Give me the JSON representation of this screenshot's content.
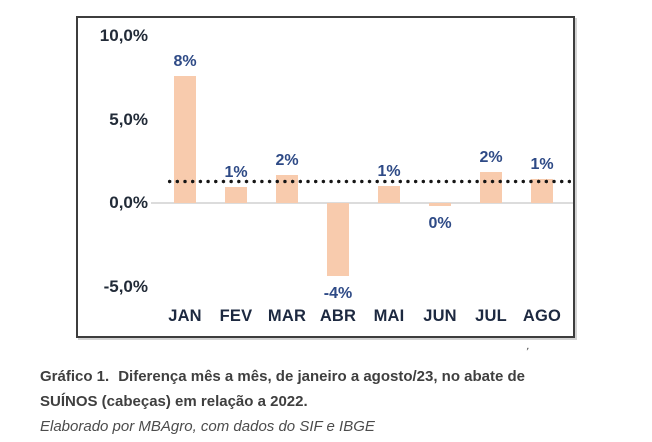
{
  "figure": {
    "caption_label": "Gráfico 1.",
    "caption_line1": "Diferença mês a mês, de janeiro a agosto/23, no abate de",
    "caption_line2": "SUÍNOS (cabeças) em relação a 2022.",
    "source_text": "Elaborado por MBAgro, com dados do SIF e IBGE",
    "stray_mark": ","
  },
  "chart_data": {
    "type": "bar",
    "title": "Diferença mês a mês, de janeiro a agosto/23, no abate de SUÍNOS (cabeças) em relação a 2022",
    "categories": [
      "JAN",
      "FEV",
      "MAR",
      "ABR",
      "MAI",
      "JUN",
      "JUL",
      "AGO"
    ],
    "values": [
      8,
      1,
      2,
      -4,
      1,
      0,
      2,
      1
    ],
    "bar_labels": [
      "8%",
      "1%",
      "2%",
      "-4%",
      "1%",
      "0%",
      "2%",
      "1%"
    ],
    "display_values": [
      7.6,
      0.95,
      1.7,
      -4.4,
      1.0,
      -0.15,
      1.85,
      1.45
    ],
    "xlabel": "",
    "ylabel": "",
    "ylim": [
      -6.5,
      11.2
    ],
    "grid": false,
    "legend": null,
    "y_axis": {
      "ticks": [
        {
          "label": "10,0%",
          "value": 10
        },
        {
          "label": "5,0%",
          "value": 5
        },
        {
          "label": "0,0%",
          "value": 0
        },
        {
          "label": "-5,0%",
          "value": -5
        }
      ]
    },
    "reference_line": {
      "value": 1.3,
      "style": "dotted",
      "color": "#161616"
    },
    "colors": {
      "bar_fill": "#F8CBAD",
      "axis_label": "#222b38",
      "data_label": "#2e4a86",
      "frame_border": "#3d3d3d",
      "zero_line": "#dcdcdc"
    }
  }
}
